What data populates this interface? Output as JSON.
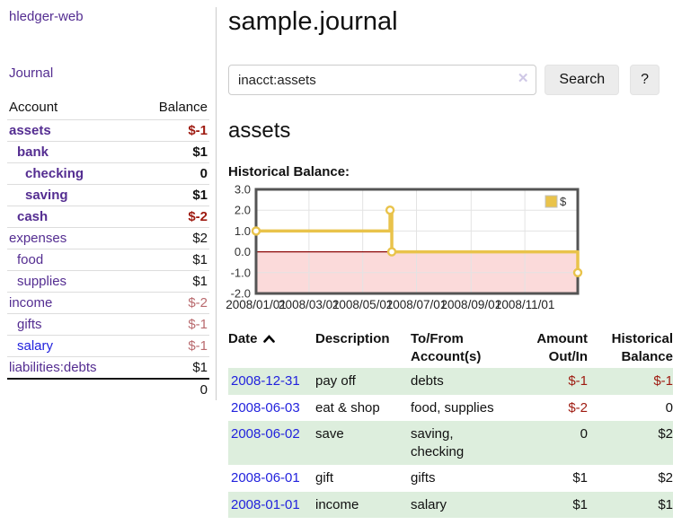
{
  "sidebar": {
    "app_title": "hledger-web",
    "journal_link": "Journal",
    "accounts_header": {
      "account": "Account",
      "balance": "Balance"
    },
    "accounts": [
      {
        "name": "assets",
        "depth": 1,
        "bold": true,
        "balance": "$-1",
        "balance_tone": "neg-strong",
        "link_tone": "purple"
      },
      {
        "name": "bank",
        "depth": 2,
        "bold": true,
        "balance": "$1",
        "balance_tone": "plain-strong",
        "link_tone": "purple"
      },
      {
        "name": "checking",
        "depth": 3,
        "bold": true,
        "balance": "0",
        "balance_tone": "plain-strong",
        "link_tone": "purple"
      },
      {
        "name": "saving",
        "depth": 3,
        "bold": true,
        "balance": "$1",
        "balance_tone": "plain-strong",
        "link_tone": "purple"
      },
      {
        "name": "cash",
        "depth": 2,
        "bold": true,
        "balance": "$-2",
        "balance_tone": "neg-strong",
        "link_tone": "purple"
      },
      {
        "name": "expenses",
        "depth": 1,
        "bold": false,
        "balance": "$2",
        "balance_tone": "plain",
        "link_tone": "purple"
      },
      {
        "name": "food",
        "depth": 2,
        "bold": false,
        "balance": "$1",
        "balance_tone": "plain",
        "link_tone": "purple"
      },
      {
        "name": "supplies",
        "depth": 2,
        "bold": false,
        "balance": "$1",
        "balance_tone": "plain",
        "link_tone": "purple"
      },
      {
        "name": "income",
        "depth": 1,
        "bold": false,
        "balance": "$-2",
        "balance_tone": "neg-soft",
        "link_tone": "purple"
      },
      {
        "name": "gifts",
        "depth": 2,
        "bold": false,
        "balance": "$-1",
        "balance_tone": "neg-soft",
        "link_tone": "purple"
      },
      {
        "name": "salary",
        "depth": 2,
        "bold": false,
        "balance": "$-1",
        "balance_tone": "neg-soft",
        "link_tone": "blue"
      },
      {
        "name": "liabilities:debts",
        "depth": 1,
        "bold": false,
        "balance": "$1",
        "balance_tone": "plain",
        "link_tone": "purple"
      }
    ],
    "total": "0"
  },
  "main": {
    "title": "sample.journal",
    "search": {
      "value": "inacct:assets",
      "clear_icon": "✕",
      "button_label": "Search",
      "help_label": "?"
    },
    "account_heading": "assets",
    "chart_title_label": "Historical Balance:"
  },
  "chart_data": {
    "type": "line",
    "step": true,
    "title": "Historical Balance:",
    "series": [
      {
        "name": "$",
        "color": "#e9c34b",
        "points": [
          [
            "2008-01-01",
            1
          ],
          [
            "2008-06-01",
            2
          ],
          [
            "2008-06-03",
            0
          ],
          [
            "2008-12-31",
            -1
          ]
        ],
        "x_days": [
          0,
          152,
          154,
          365
        ]
      }
    ],
    "xlim_days": [
      0,
      365
    ],
    "ylim": [
      -2,
      3
    ],
    "y_ticks": [
      3.0,
      2.0,
      1.0,
      0.0,
      -1.0,
      -2.0
    ],
    "x_ticks": [
      {
        "day": 0,
        "label": "2008/01/01"
      },
      {
        "day": 60,
        "label": "2008/03/01"
      },
      {
        "day": 121,
        "label": "2008/05/01"
      },
      {
        "day": 182,
        "label": "2008/07/01"
      },
      {
        "day": 244,
        "label": "2008/09/01"
      },
      {
        "day": 305,
        "label": "2008/11/01"
      }
    ],
    "legend": {
      "label": "$",
      "position": "top-right"
    },
    "grid": true,
    "colors": {
      "negative_region_fill": "#fbdada",
      "zero_line": "#8c0606",
      "gridline": "#e3e3e3",
      "plot_border": "#545454",
      "tick_text": "#333333"
    }
  },
  "register": {
    "headers": {
      "date": "Date",
      "description": "Description",
      "accounts": "To/From Account(s)",
      "amount": "Amount Out/In",
      "balance": "Historical Balance"
    },
    "rows": [
      {
        "date": "2008-12-31",
        "description": "pay off",
        "accounts": "debts",
        "amount": "$-1",
        "balance": "$-1",
        "shaded": true
      },
      {
        "date": "2008-06-03",
        "description": "eat & shop",
        "accounts": "food, supplies",
        "amount": "$-2",
        "balance": "0",
        "shaded": false
      },
      {
        "date": "2008-06-02",
        "description": "save",
        "accounts": "saving,\nchecking",
        "amount": "0",
        "balance": "$2",
        "shaded": true
      },
      {
        "date": "2008-06-01",
        "description": "gift",
        "accounts": "gifts",
        "amount": "$1",
        "balance": "$2",
        "shaded": false
      },
      {
        "date": "2008-01-01",
        "description": "income",
        "accounts": "salary",
        "amount": "$1",
        "balance": "$1",
        "shaded": true
      }
    ]
  }
}
